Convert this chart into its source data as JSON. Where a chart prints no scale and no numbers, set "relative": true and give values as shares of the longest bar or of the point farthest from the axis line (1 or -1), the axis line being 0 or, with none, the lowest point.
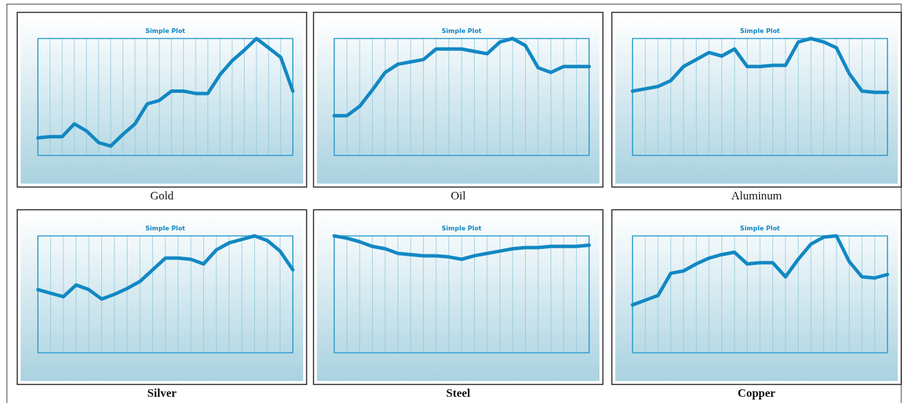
{
  "chart_data": [
    {
      "type": "line",
      "title": "Gold",
      "subtitle": "Simple Plot",
      "relative": true,
      "grid": "x",
      "categories": [
        null,
        null,
        null,
        null,
        null,
        null,
        null,
        null,
        null,
        null,
        null,
        null,
        null,
        null,
        null,
        null,
        null,
        null,
        null,
        null,
        null,
        null
      ],
      "series": [
        {
          "color": "#1288c3",
          "values": [
            0.15,
            0.16,
            0.16,
            0.27,
            0.21,
            0.11,
            0.08,
            0.18,
            0.27,
            0.44,
            0.47,
            0.55,
            0.55,
            0.53,
            0.53,
            0.69,
            0.81,
            0.9,
            1,
            0.92,
            0.84,
            0.55
          ]
        }
      ]
    },
    {
      "type": "line",
      "title": "Oil",
      "subtitle": "Simple Plot",
      "relative": true,
      "grid": "x",
      "categories": [
        null,
        null,
        null,
        null,
        null,
        null,
        null,
        null,
        null,
        null,
        null,
        null,
        null,
        null,
        null,
        null,
        null,
        null,
        null,
        null,
        null
      ],
      "series": [
        {
          "color": "#1288c3",
          "values": [
            0.34,
            0.34,
            0.42,
            0.56,
            0.71,
            0.78,
            0.8,
            0.82,
            0.91,
            0.91,
            0.91,
            0.89,
            0.87,
            0.97,
            1,
            0.94,
            0.75,
            0.71,
            0.76,
            0.76,
            0.76
          ]
        }
      ]
    },
    {
      "type": "line",
      "title": "Aluminum",
      "subtitle": "Simple Plot",
      "relative": true,
      "grid": "x",
      "categories": [
        null,
        null,
        null,
        null,
        null,
        null,
        null,
        null,
        null,
        null,
        null,
        null,
        null,
        null,
        null,
        null,
        null,
        null,
        null,
        null,
        null
      ],
      "series": [
        {
          "color": "#1288c3",
          "values": [
            0.55,
            0.57,
            0.59,
            0.64,
            0.76,
            0.82,
            0.88,
            0.85,
            0.91,
            0.76,
            0.76,
            0.77,
            0.77,
            0.97,
            1,
            0.97,
            0.92,
            0.7,
            0.55,
            0.54,
            0.54
          ]
        }
      ]
    },
    {
      "type": "line",
      "title": "Silver",
      "subtitle": "Simple Plot",
      "relative": true,
      "grid": "x",
      "categories": [
        null,
        null,
        null,
        null,
        null,
        null,
        null,
        null,
        null,
        null,
        null,
        null,
        null,
        null,
        null,
        null,
        null,
        null,
        null,
        null,
        null
      ],
      "series": [
        {
          "color": "#1288c3",
          "values": [
            0.54,
            0.51,
            0.48,
            0.58,
            0.54,
            0.46,
            0.5,
            0.55,
            0.61,
            0.71,
            0.81,
            0.81,
            0.8,
            0.76,
            0.88,
            0.94,
            0.97,
            1,
            0.96,
            0.87,
            0.71
          ]
        }
      ]
    },
    {
      "type": "line",
      "title": "Steel",
      "subtitle": "Simple Plot",
      "relative": true,
      "grid": "x",
      "categories": [
        null,
        null,
        null,
        null,
        null,
        null,
        null,
        null,
        null,
        null,
        null,
        null,
        null,
        null,
        null,
        null,
        null,
        null,
        null,
        null,
        null
      ],
      "series": [
        {
          "color": "#1288c3",
          "values": [
            1,
            0.98,
            0.95,
            0.91,
            0.89,
            0.85,
            0.84,
            0.83,
            0.83,
            0.82,
            0.8,
            0.83,
            0.85,
            0.87,
            0.89,
            0.9,
            0.9,
            0.91,
            0.91,
            0.91,
            0.92
          ]
        }
      ]
    },
    {
      "type": "line",
      "title": "Copper",
      "subtitle": "Simple Plot",
      "relative": true,
      "grid": "x",
      "categories": [
        null,
        null,
        null,
        null,
        null,
        null,
        null,
        null,
        null,
        null,
        null,
        null,
        null,
        null,
        null,
        null,
        null,
        null,
        null,
        null,
        null
      ],
      "series": [
        {
          "color": "#1288c3",
          "values": [
            0.41,
            0.45,
            0.49,
            0.68,
            0.7,
            0.76,
            0.81,
            0.84,
            0.86,
            0.76,
            0.77,
            0.77,
            0.65,
            0.8,
            0.93,
            0.99,
            1,
            0.78,
            0.65,
            0.64,
            0.67
          ]
        }
      ]
    }
  ]
}
